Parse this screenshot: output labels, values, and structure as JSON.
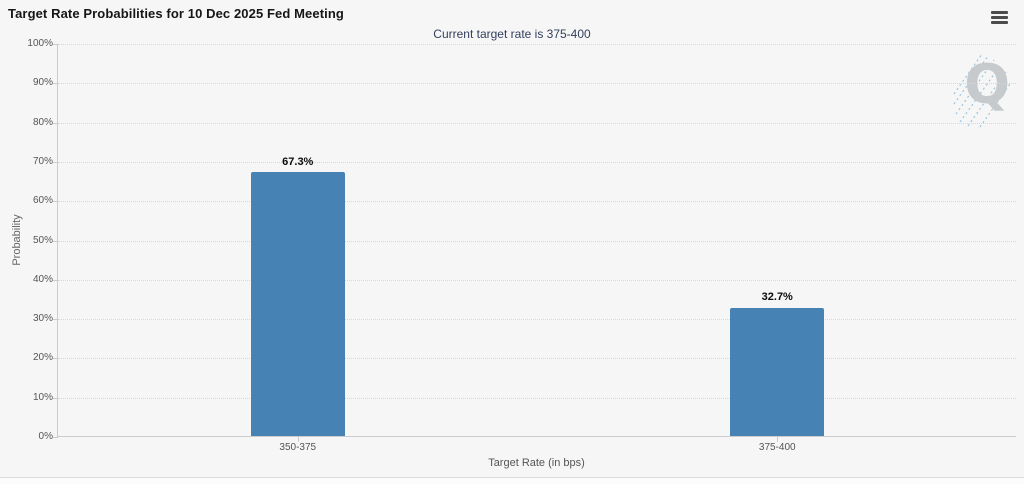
{
  "header": {
    "title": "Target Rate Probabilities for 10 Dec 2025 Fed Meeting",
    "menu_icon": "hamburger-icon"
  },
  "watermark_text": "Q",
  "chart_data": {
    "type": "bar",
    "title": "Target Rate Probabilities for 10 Dec 2025 Fed Meeting",
    "subtitle": "Current target rate is 375-400",
    "categories": [
      "350-375",
      "375-400"
    ],
    "values": [
      67.3,
      32.7
    ],
    "value_labels": [
      "67.3%",
      "32.7%"
    ],
    "xlabel": "Target Rate (in bps)",
    "ylabel": "Probability",
    "ylim": [
      0,
      100
    ],
    "ytick_step": 10,
    "ytick_labels": [
      "0%",
      "10%",
      "20%",
      "30%",
      "40%",
      "50%",
      "60%",
      "70%",
      "80%",
      "90%",
      "100%"
    ],
    "grid": "horizontal-dotted",
    "legend": "none",
    "bar_color": "#4682b4",
    "subtitle_color": "#333f5e"
  }
}
